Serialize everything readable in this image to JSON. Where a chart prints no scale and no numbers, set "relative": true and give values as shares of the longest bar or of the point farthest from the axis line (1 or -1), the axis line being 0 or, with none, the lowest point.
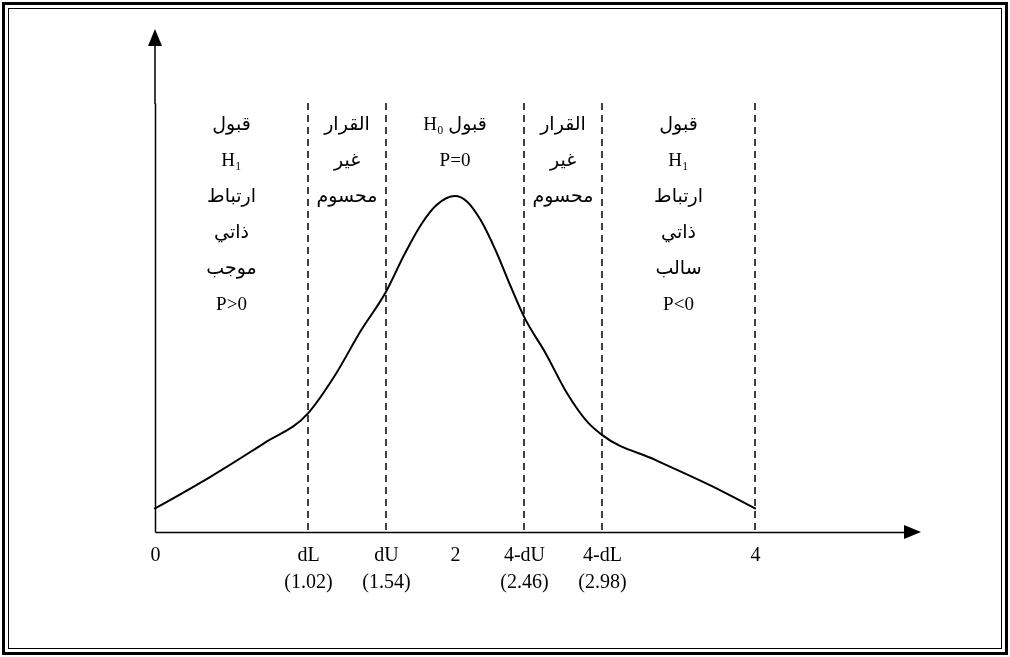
{
  "chart_data": {
    "type": "line",
    "relative": true,
    "x": [
      0,
      0.372,
      0.726,
      1.02,
      1.194,
      1.375,
      1.54,
      1.666,
      1.78,
      1.877,
      2,
      2.081,
      2.17,
      2.27,
      2.372,
      2.46,
      2.604,
      2.747,
      2.89,
      2.98,
      3.338,
      3.696,
      4
    ],
    "series": [
      {
        "color": "#000000",
        "values": [
          0.07,
          0.165,
          0.264,
          0.353,
          0.462,
          0.601,
          0.715,
          0.829,
          0.919,
          0.973,
          1,
          0.983,
          0.929,
          0.839,
          0.73,
          0.641,
          0.532,
          0.413,
          0.324,
          0.289,
          0.214,
          0.14,
          0.07
        ]
      }
    ],
    "line_style": "solid",
    "xlim": [
      0,
      5
    ],
    "xticks": [
      0,
      {
        "value": 1.02,
        "label": "dL\n(1.02)"
      },
      {
        "value": 1.54,
        "label": "dU\n(1.54)"
      },
      2,
      {
        "value": 2.46,
        "label": "4-dU\n(2.46)"
      },
      {
        "value": 2.98,
        "label": "4-dL\n(2.98)"
      },
      4
    ],
    "ref_lines": [
      {
        "axis": "x",
        "value": 1.02,
        "line_style": "dashed",
        "color": "#000000"
      },
      {
        "axis": "x",
        "value": 1.54,
        "line_style": "dashed",
        "color": "#000000"
      },
      {
        "axis": "x",
        "value": 2.46,
        "line_style": "dashed",
        "color": "#000000"
      },
      {
        "axis": "x",
        "value": 2.98,
        "line_style": "dashed",
        "color": "#000000"
      },
      {
        "axis": "x",
        "value": 4,
        "line_style": "dashed",
        "color": "#000000"
      }
    ],
    "annotations": [
      "قبول\nH₁\nارتباط\nذاتي\nموجب\nP>0",
      "القرار\nغير\nمحسوم",
      "قبول H₀\nP=0",
      "القرار\nغير\nمحسوم",
      "قبول\nH₁\nارتباط\nذاتي\nسالب\nP<0"
    ]
  }
}
